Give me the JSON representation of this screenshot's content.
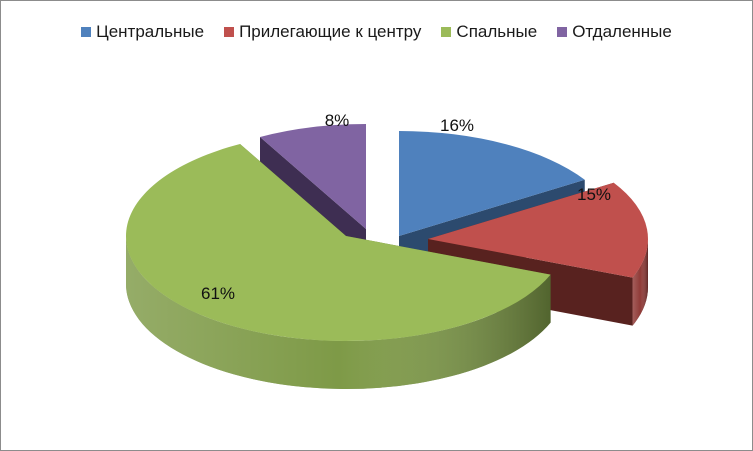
{
  "chart_data": {
    "type": "pie",
    "variant": "3d-exploded",
    "title": "",
    "legend_position": "top",
    "categories": [
      "Центральные",
      "Прилегающие к центру",
      "Спальные",
      "Отдаленные"
    ],
    "values": [
      16,
      15,
      61,
      8
    ],
    "labels": [
      "16%",
      "15%",
      "61%",
      "8%"
    ],
    "colors": [
      "#4f81bd",
      "#c0504d",
      "#9bbb59",
      "#8064a2"
    ],
    "side_colors": [
      "#2c4a6e",
      "#58221f",
      "#5b7132",
      "#3e2e52"
    ]
  }
}
